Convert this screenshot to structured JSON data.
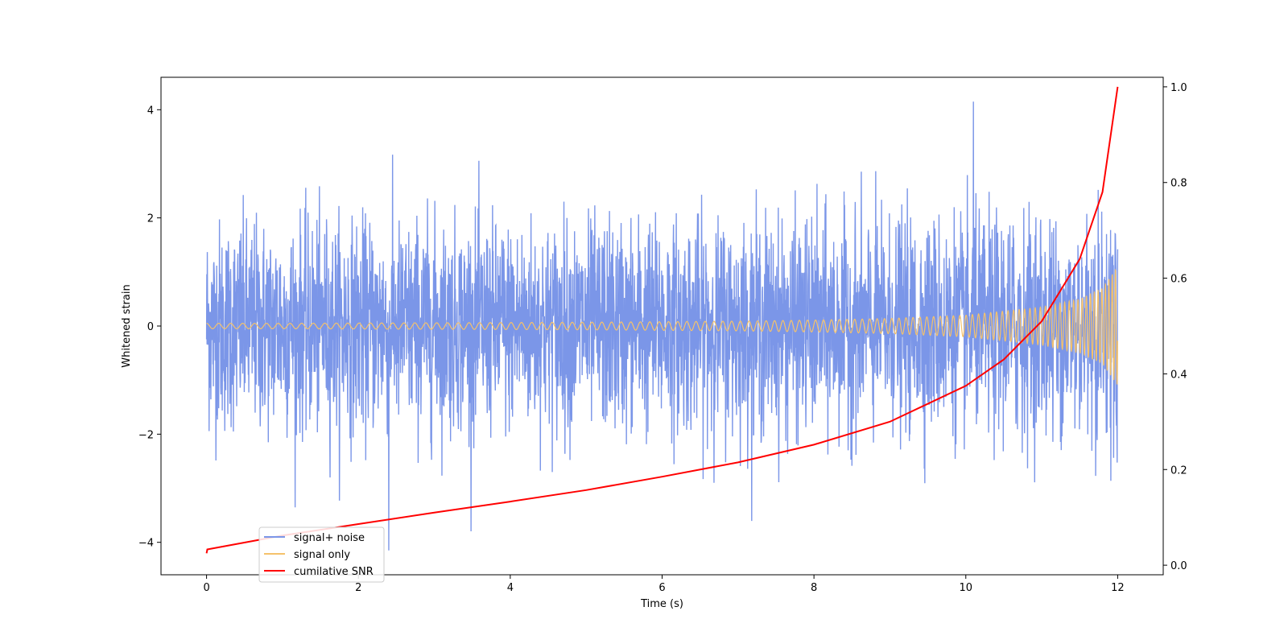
{
  "chart_data": {
    "type": "line",
    "xlabel": "Time (s)",
    "ylabel": "Whitened strain",
    "xlim": [
      -0.6,
      12.6
    ],
    "ylim": [
      -4.6,
      4.6
    ],
    "y2lim": [
      -0.02,
      1.02
    ],
    "x_ticks": [
      0,
      2,
      4,
      6,
      8,
      10,
      12
    ],
    "y_ticks": [
      -4,
      -2,
      0,
      2,
      4
    ],
    "y2_ticks": [
      0.0,
      0.2,
      0.4,
      0.6,
      0.8,
      1.0
    ],
    "x_tick_labels": [
      "0",
      "2",
      "4",
      "6",
      "8",
      "10",
      "12"
    ],
    "y_tick_labels": [
      "−4",
      "−2",
      "0",
      "2",
      "4"
    ],
    "y2_tick_labels": [
      "0.0",
      "0.2",
      "0.4",
      "0.6",
      "0.8",
      "1.0"
    ],
    "legend_position": "lower-left",
    "series": [
      {
        "name": "signal+ noise",
        "color": "#7b96e8",
        "axis": "left",
        "x_range": [
          0,
          12
        ],
        "approx_range": [
          -4.2,
          4.15
        ],
        "description_values": {
          "noise_std": 1.0,
          "max_peak": 4.15,
          "max_peak_x": 10.1,
          "min_trough": -4.15,
          "min_trough_x": 2.4
        }
      },
      {
        "name": "signal only",
        "color": "#f5c26b",
        "axis": "left",
        "x_range": [
          0,
          12
        ],
        "envelope": {
          "x": [
            0,
            1,
            2,
            3,
            4,
            5,
            6,
            7,
            8,
            9,
            10,
            11,
            11.5,
            11.8,
            12
          ],
          "amplitude": [
            0.05,
            0.05,
            0.055,
            0.06,
            0.065,
            0.07,
            0.08,
            0.09,
            0.11,
            0.14,
            0.2,
            0.35,
            0.5,
            0.7,
            1.1
          ]
        }
      },
      {
        "name": "cumilative SNR",
        "color": "#ff0000",
        "axis": "right",
        "x": [
          0,
          0.01,
          1,
          2,
          3,
          4,
          5,
          6,
          7,
          8,
          9,
          10,
          10.5,
          11,
          11.5,
          11.8,
          12
        ],
        "values": [
          0.025,
          0.033,
          0.062,
          0.086,
          0.11,
          0.133,
          0.157,
          0.185,
          0.215,
          0.252,
          0.3,
          0.375,
          0.43,
          0.51,
          0.64,
          0.78,
          1.0
        ]
      }
    ]
  }
}
